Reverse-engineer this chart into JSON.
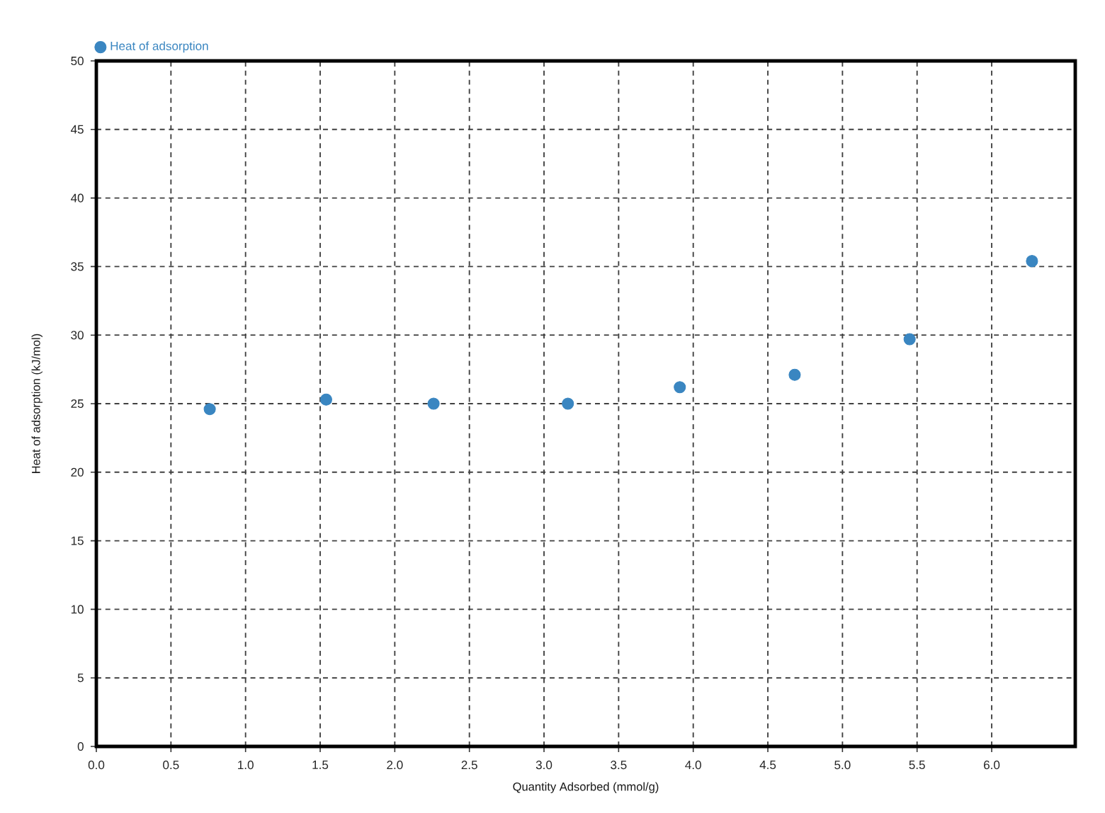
{
  "chart_data": {
    "type": "scatter",
    "xlabel": "Quantity Adsorbed (mmol/g)",
    "ylabel": "Heat of adsorption (kJ/mol)",
    "x": [
      0.76,
      1.54,
      2.26,
      3.16,
      3.91,
      4.68,
      5.45,
      6.27
    ],
    "series": [
      {
        "name": "Heat of adsorption",
        "color": "#3a86c1",
        "values": [
          24.6,
          25.3,
          25.0,
          25.0,
          26.2,
          27.1,
          29.7,
          35.4
        ]
      }
    ],
    "xlim": [
      0,
      6.56
    ],
    "ylim": [
      0,
      50
    ],
    "xticks": [
      {
        "value": 0,
        "label": "0.0"
      },
      0.5,
      {
        "value": 1,
        "label": "1.0"
      },
      1.5,
      {
        "value": 2,
        "label": "2.0"
      },
      2.5,
      {
        "value": 3,
        "label": "3.0"
      },
      3.5,
      {
        "value": 4,
        "label": "4.0"
      },
      4.5,
      {
        "value": 5,
        "label": "5.0"
      },
      5.5,
      {
        "value": 6,
        "label": "6.0"
      }
    ],
    "yticks": [
      0,
      5,
      10,
      15,
      20,
      25,
      30,
      35,
      40,
      45,
      50
    ],
    "grid": true,
    "legend": "top left",
    "marker": "circle"
  }
}
